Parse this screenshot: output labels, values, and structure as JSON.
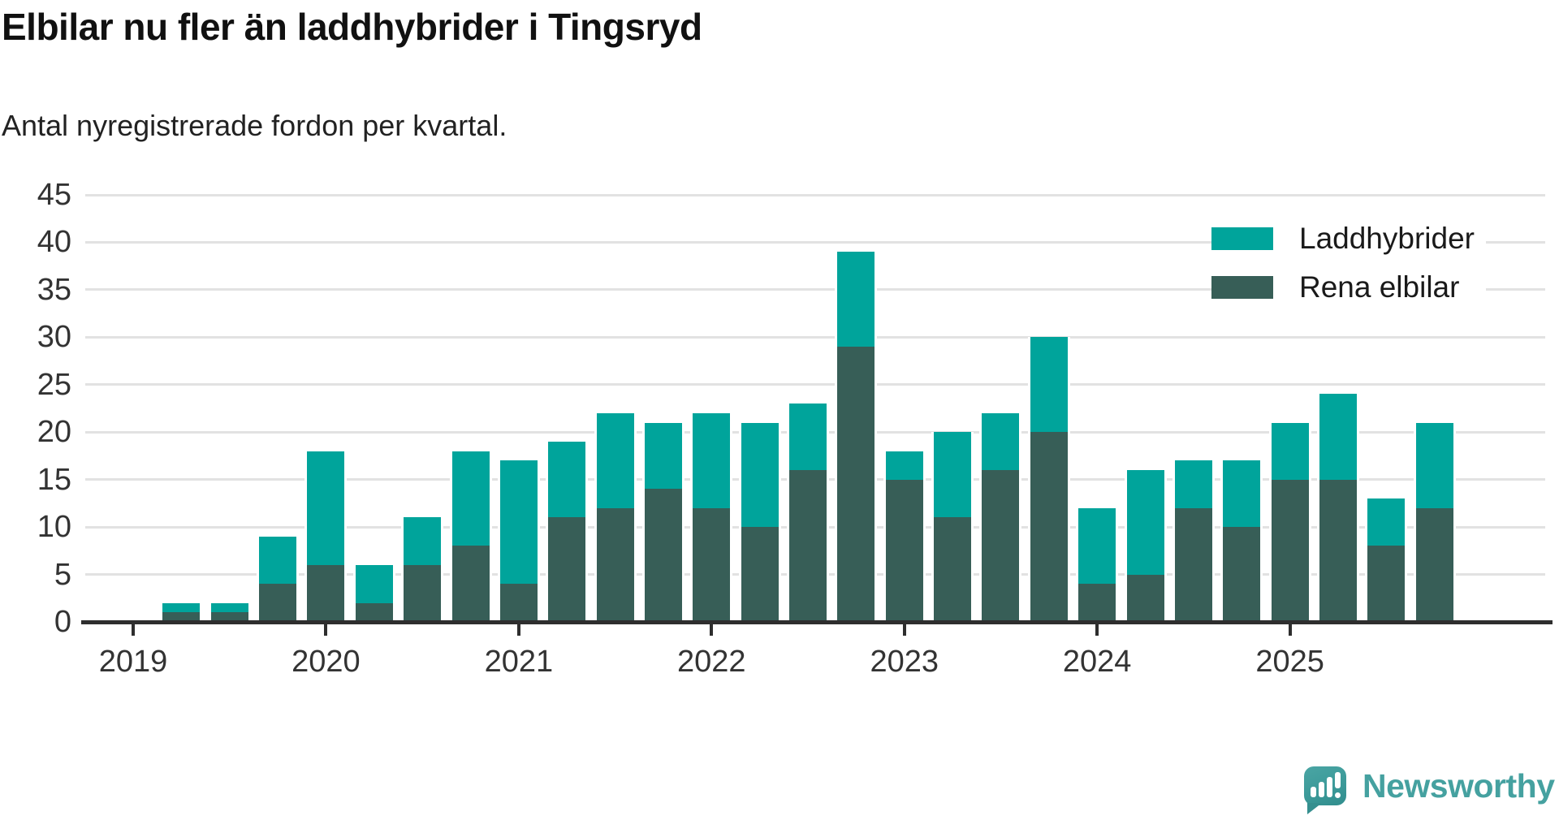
{
  "chart_data": {
    "type": "bar",
    "stacked": true,
    "title": "Elbilar nu fler än laddhybrider i Tingsryd",
    "subtitle": "Antal nyregistrerade fordon per kvartal.",
    "categories": [
      "2019 Q1",
      "2019 Q2",
      "2019 Q3",
      "2019 Q4",
      "2020 Q1",
      "2020 Q2",
      "2020 Q3",
      "2020 Q4",
      "2021 Q1",
      "2021 Q2",
      "2021 Q3",
      "2021 Q4",
      "2022 Q1",
      "2022 Q2",
      "2022 Q3",
      "2022 Q4",
      "2023 Q1",
      "2023 Q2",
      "2023 Q3",
      "2023 Q4",
      "2024 Q1",
      "2024 Q2",
      "2024 Q3",
      "2024 Q4",
      "2025 Q1",
      "2025 Q2",
      "2025 Q3",
      "2025 Q4"
    ],
    "series": [
      {
        "name": "Laddhybrider",
        "color": "#00a49b",
        "stack_position": "top",
        "values": [
          0,
          1,
          1,
          5,
          12,
          4,
          5,
          10,
          13,
          8,
          10,
          7,
          10,
          11,
          7,
          10,
          3,
          9,
          6,
          10,
          8,
          11,
          5,
          7,
          6,
          9,
          5,
          9
        ]
      },
      {
        "name": "Rena elbilar",
        "color": "#375e57",
        "stack_position": "bottom",
        "values": [
          0,
          1,
          1,
          4,
          6,
          2,
          6,
          8,
          4,
          11,
          12,
          14,
          12,
          10,
          16,
          29,
          15,
          11,
          16,
          20,
          4,
          5,
          12,
          10,
          15,
          15,
          8,
          12
        ]
      }
    ],
    "ylim": [
      0,
      45
    ],
    "y_ticks": [
      0,
      5,
      10,
      15,
      20,
      25,
      30,
      35,
      40,
      45
    ],
    "x_tick_labels": [
      "2019",
      "2020",
      "2021",
      "2022",
      "2023",
      "2024",
      "2025"
    ],
    "grid": "horizontal",
    "legend_position": "top-right",
    "colors": {
      "grid": "#e2e2e2",
      "axis": "#2e2e2e",
      "tick_text": "#333333"
    }
  },
  "legend": {
    "items": [
      {
        "label": "Laddhybrider"
      },
      {
        "label": "Rena elbilar"
      }
    ]
  },
  "branding": {
    "logo_text": "Newsworthy"
  }
}
